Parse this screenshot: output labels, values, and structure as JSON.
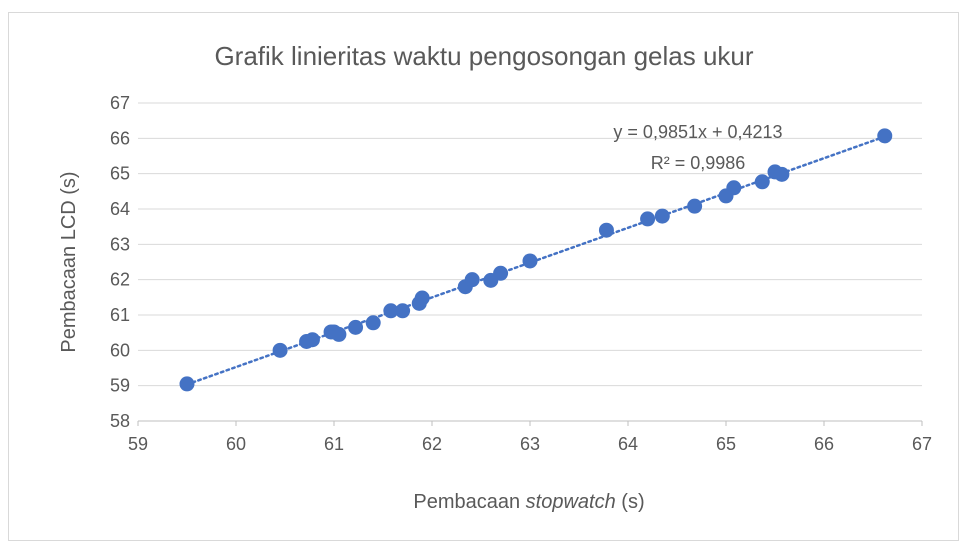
{
  "chart_data": {
    "type": "scatter",
    "title": "Grafik linieritas waktu pengosongan gelas ukur",
    "xlabel_prefix": "Pembacaan ",
    "xlabel_italic": "stopwatch",
    "xlabel_suffix": " (s)",
    "ylabel": "Pembacaan LCD (s)",
    "xlim": [
      59,
      67
    ],
    "ylim": [
      58,
      67
    ],
    "xticks": [
      "59",
      "60",
      "61",
      "62",
      "63",
      "64",
      "65",
      "66",
      "67"
    ],
    "yticks": [
      "58",
      "59",
      "60",
      "61",
      "62",
      "63",
      "64",
      "65",
      "66",
      "67"
    ],
    "grid": "horizontal",
    "marker_color": "#4472c4",
    "trendline": {
      "type": "linear",
      "slope": 0.9851,
      "intercept": 0.4213,
      "style": "dotted",
      "color": "#4472c4"
    },
    "equation_label": "y = 0,9851x + 0,4213",
    "r2_label": "R² = 0,9986",
    "points": [
      [
        59.5,
        59.05
      ],
      [
        60.45,
        60.0
      ],
      [
        60.72,
        60.25
      ],
      [
        60.78,
        60.3
      ],
      [
        60.97,
        60.52
      ],
      [
        61.0,
        60.52
      ],
      [
        61.05,
        60.45
      ],
      [
        61.22,
        60.65
      ],
      [
        61.4,
        60.78
      ],
      [
        61.58,
        61.12
      ],
      [
        61.7,
        61.12
      ],
      [
        61.87,
        61.33
      ],
      [
        61.9,
        61.48
      ],
      [
        62.34,
        61.8
      ],
      [
        62.41,
        62.0
      ],
      [
        62.6,
        61.98
      ],
      [
        62.7,
        62.18
      ],
      [
        63.0,
        62.53
      ],
      [
        63.78,
        63.4
      ],
      [
        64.2,
        63.72
      ],
      [
        64.35,
        63.8
      ],
      [
        64.68,
        64.08
      ],
      [
        65.0,
        64.37
      ],
      [
        65.08,
        64.6
      ],
      [
        65.37,
        64.77
      ],
      [
        65.5,
        65.05
      ],
      [
        65.57,
        64.98
      ],
      [
        66.62,
        66.07
      ]
    ]
  }
}
